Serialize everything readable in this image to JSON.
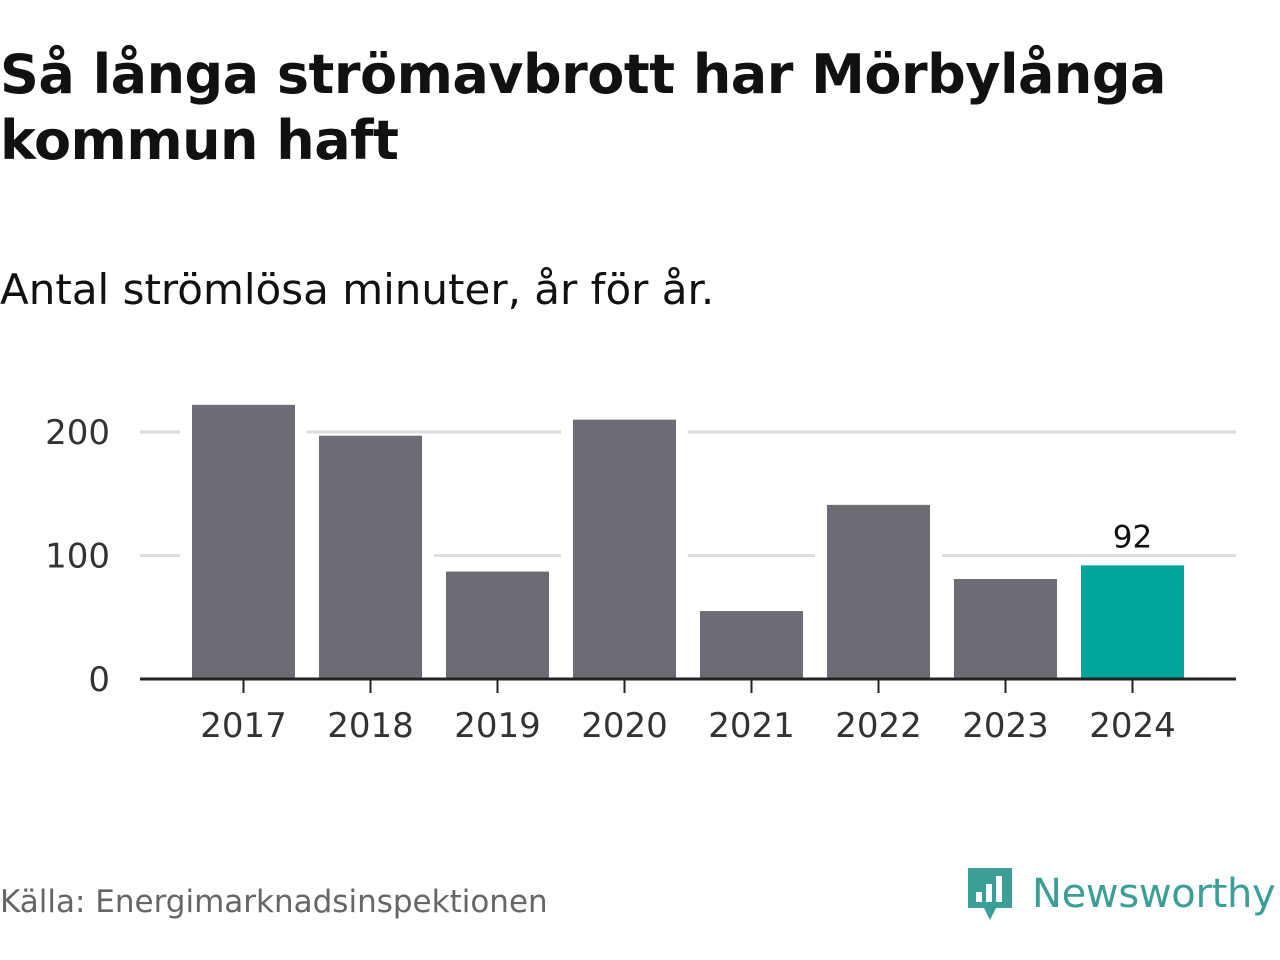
{
  "title": "Så långa strömavbrott har Mörbylånga kommun haft",
  "subtitle": "Antal strömlösa minuter, år för år.",
  "source": "Källa: Energimarknadsinspektionen",
  "brand": {
    "name": "Newsworthy",
    "icon": "bar-chart-speech-bubble-icon",
    "color": "#3b9f96"
  },
  "colors": {
    "bar": "#6d6c73",
    "highlight": "#00a59a",
    "grid": "#dddddd",
    "axis": "#222222"
  },
  "chart_data": {
    "type": "bar",
    "categories": [
      "2017",
      "2018",
      "2019",
      "2020",
      "2021",
      "2022",
      "2023",
      "2024"
    ],
    "values": [
      222,
      197,
      87,
      210,
      55,
      141,
      81,
      92
    ],
    "highlight_index": 7,
    "data_labels": {
      "2024": "92"
    },
    "ylim": [
      0,
      230
    ],
    "yticks": [
      0,
      100,
      200
    ],
    "grid": true,
    "xlabel": "",
    "ylabel": ""
  }
}
